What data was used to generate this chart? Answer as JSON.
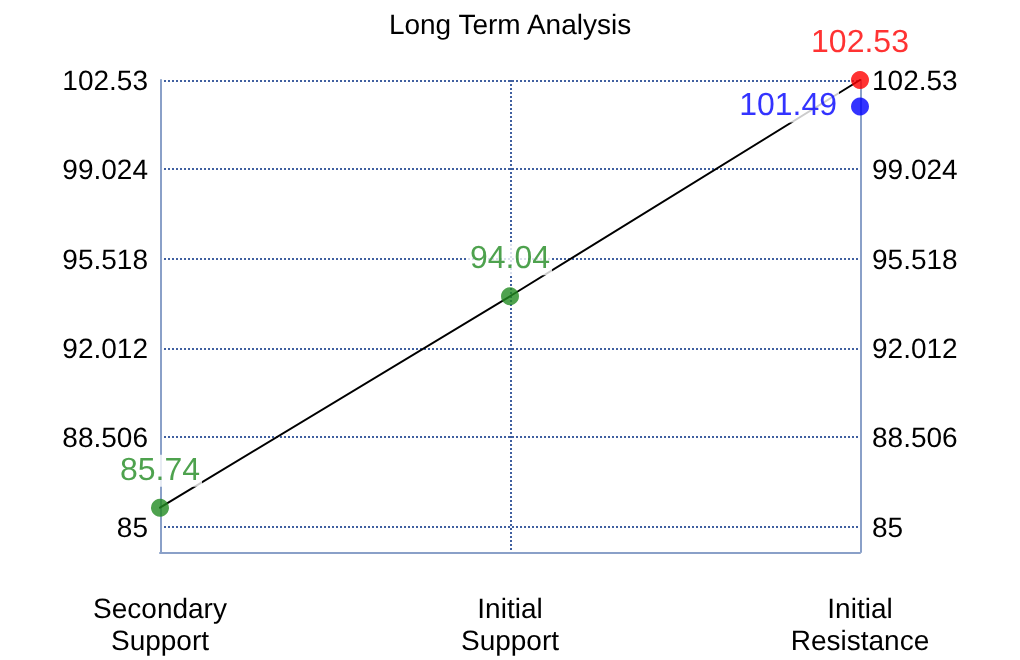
{
  "chart_data": {
    "type": "scatter",
    "title": "Long Term Analysis",
    "categories": [
      "Secondary Support",
      "Initial Support",
      "Initial Resistance"
    ],
    "series": [
      {
        "type": "line",
        "color": "#000000",
        "values": [
          85.74,
          94.04,
          102.53
        ],
        "marker": "none"
      },
      {
        "x": [
          "Secondary Support",
          "Initial Support",
          "Initial Resistance",
          "Initial Resistance"
        ],
        "values": [
          85.74,
          94.04,
          101.49,
          102.53
        ],
        "colors": [
          "#228b22",
          "#228b22",
          "#0000ff",
          "#ff0000"
        ],
        "data_labels": true,
        "marker": "circle"
      }
    ],
    "ylim": [
      84,
      102.53
    ],
    "yticks": [
      85,
      88.506,
      92.012,
      95.518,
      99.024,
      102.53
    ],
    "y2lim": [
      84,
      102.53
    ],
    "y2ticks": [
      85,
      88.506,
      92.012,
      95.518,
      99.024,
      102.53
    ],
    "grid": true
  }
}
